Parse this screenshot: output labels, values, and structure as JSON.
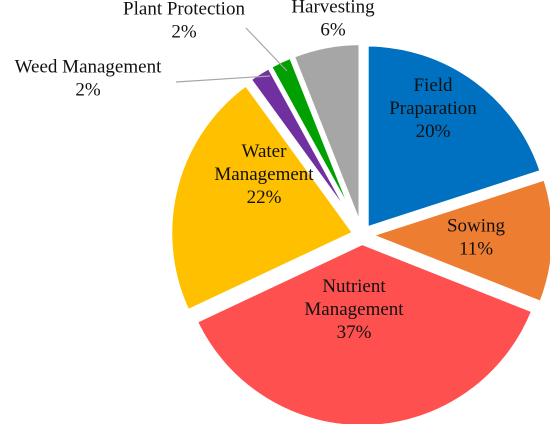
{
  "chart_data": {
    "type": "pie",
    "title": "",
    "start": "12 o'clock",
    "direction": "clockwise",
    "slices": [
      {
        "name": "Field Praparation",
        "label_lines": [
          "Field",
          "Praparation"
        ],
        "value": 20,
        "value_label": "20%",
        "color": "#0070C0",
        "exploded": true
      },
      {
        "name": "Sowing",
        "label_lines": [
          "Sowing"
        ],
        "value": 11,
        "value_label": "11%",
        "color": "#ED7D31",
        "exploded": true
      },
      {
        "name": "Nutrient Management",
        "label_lines": [
          "Nutrient",
          "Management"
        ],
        "value": 37,
        "value_label": "37%",
        "color": "#FF5050",
        "exploded": true
      },
      {
        "name": "Water Management",
        "label_lines": [
          "Water",
          "Management"
        ],
        "value": 22,
        "value_label": "22%",
        "color": "#FFC000",
        "exploded": true
      },
      {
        "name": "Weed Management",
        "label_lines": [
          "Weed Management"
        ],
        "value": 2,
        "value_label": "2%",
        "color": "#7030A0",
        "exploded": true
      },
      {
        "name": "Plant Protection",
        "label_lines": [
          "Plant Protection"
        ],
        "value": 2,
        "value_label": "2%",
        "color": "#00A000",
        "exploded": true
      },
      {
        "name": "Harvesting",
        "label_lines": [
          "Harvesting"
        ],
        "value": 6,
        "value_label": "6%",
        "color": "#A6A6A6",
        "exploded": true
      }
    ]
  }
}
